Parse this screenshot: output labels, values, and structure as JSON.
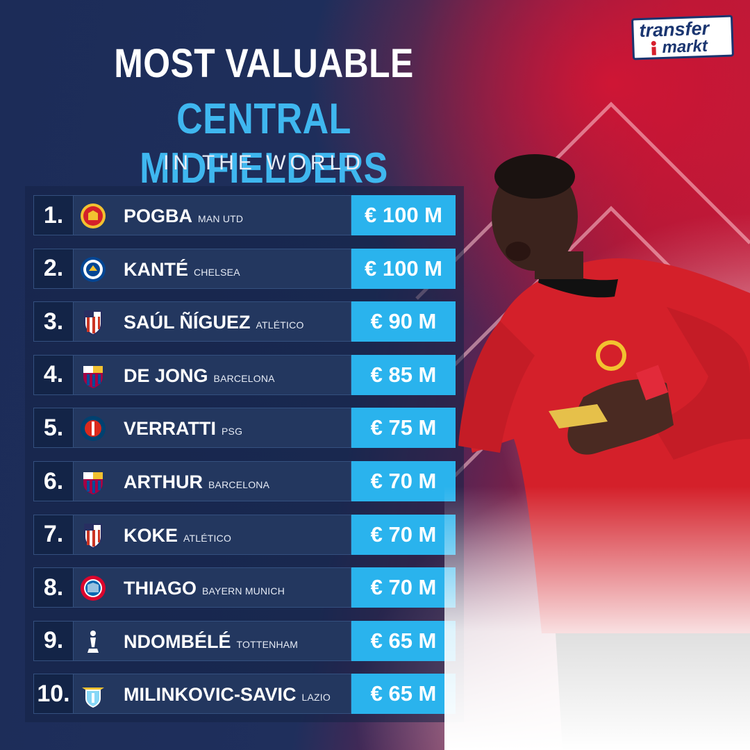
{
  "header": {
    "title_line1": "MOST VALUABLE",
    "title_line2": "CENTRAL MIDFIELDERS",
    "title_line3": "IN THE WORLD"
  },
  "logo": {
    "line1": "transfer",
    "line2": "markt"
  },
  "colors": {
    "accent_blue": "#2ab3ed",
    "title_blue": "#3fb7ef",
    "navy": "#1b2a52",
    "red": "#c81c3a"
  },
  "players": [
    {
      "rank": "1.",
      "crest": "man-utd-crest-icon",
      "name": "POGBA",
      "club": "MAN UTD",
      "value": "€ 100 M"
    },
    {
      "rank": "2.",
      "crest": "chelsea-crest-icon",
      "name": "KANTÉ",
      "club": "CHELSEA",
      "value": "€ 100 M"
    },
    {
      "rank": "3.",
      "crest": "atletico-crest-icon",
      "name": "SAÚL ÑÍGUEZ",
      "club": "ATLÉTICO",
      "value": "€ 90 M"
    },
    {
      "rank": "4.",
      "crest": "barcelona-crest-icon",
      "name": "DE JONG",
      "club": "BARCELONA",
      "value": "€ 85 M"
    },
    {
      "rank": "5.",
      "crest": "psg-crest-icon",
      "name": "VERRATTI",
      "club": "PSG",
      "value": "€ 75 M"
    },
    {
      "rank": "6.",
      "crest": "barcelona-crest-icon",
      "name": "ARTHUR",
      "club": "BARCELONA",
      "value": "€ 70 M"
    },
    {
      "rank": "7.",
      "crest": "atletico-crest-icon",
      "name": "KOKE",
      "club": "ATLÉTICO",
      "value": "€ 70 M"
    },
    {
      "rank": "8.",
      "crest": "bayern-crest-icon",
      "name": "THIAGO",
      "club": "BAYERN MUNICH",
      "value": "€ 70 M"
    },
    {
      "rank": "9.",
      "crest": "tottenham-crest-icon",
      "name": "NDOMBÉLÉ",
      "club": "TOTTENHAM",
      "value": "€ 65 M"
    },
    {
      "rank": "10.",
      "crest": "lazio-crest-icon",
      "name": "MILINKOVIC-SAVIC",
      "club": "LAZIO",
      "value": "€ 65 M"
    }
  ]
}
